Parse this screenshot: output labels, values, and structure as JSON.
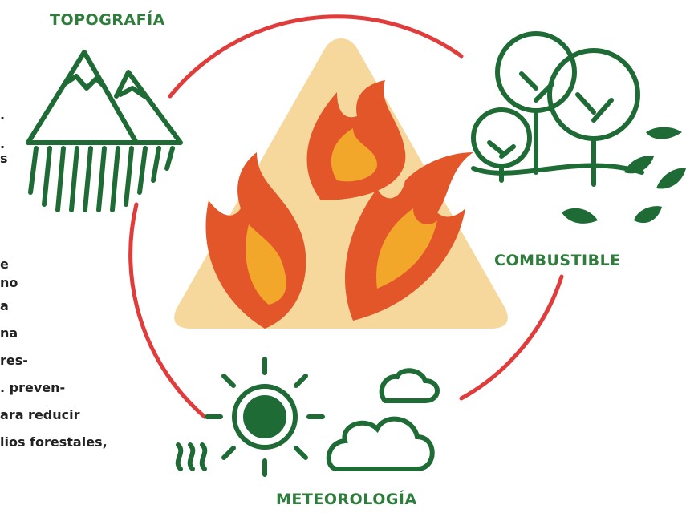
{
  "labels": {
    "topography": "TOPOGRAFÍA",
    "fuel": "COMBUSTIBLE",
    "weather": "METEOROLOGÍA"
  },
  "text_fragments": [
    ".",
    ".",
    "s",
    "e",
    "no",
    "a",
    "na",
    "res-",
    ". preven-",
    "ara reducir",
    "lios forestales,"
  ]
}
